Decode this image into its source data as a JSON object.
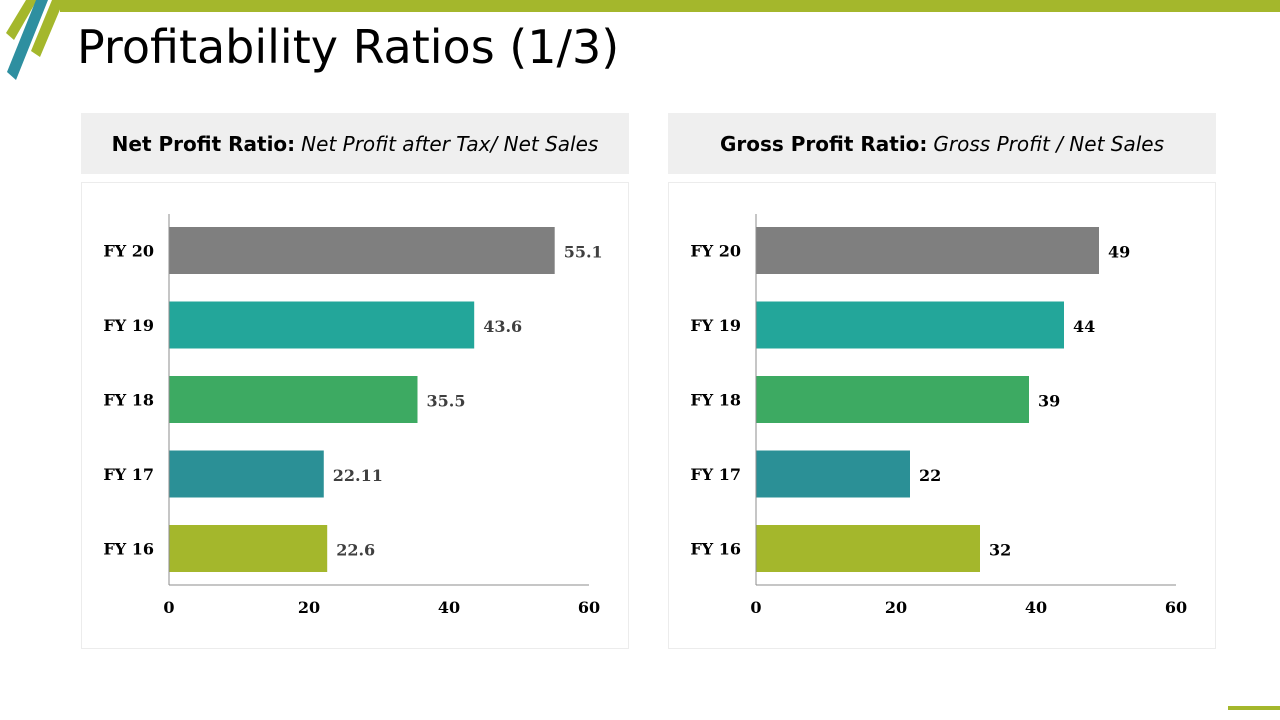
{
  "slide": {
    "title": "Profitability Ratios (1/3)"
  },
  "theme": {
    "accent": "#a4b72c",
    "teal": "#2e8fa0"
  },
  "panels": [
    {
      "label": "Net Profit Ratio:",
      "expression": "Net Profit after Tax/ Net Sales"
    },
    {
      "label": "Gross Profit Ratio:",
      "expression": "Gross Profit / Net Sales"
    }
  ],
  "chart_data": [
    {
      "type": "bar",
      "orientation": "horizontal",
      "title": "Net Profit Ratio: Net Profit after Tax/ Net Sales",
      "categories": [
        "FY 20",
        "FY 19",
        "FY 18",
        "FY 17",
        "FY 16"
      ],
      "values": [
        55.1,
        43.6,
        35.5,
        22.11,
        22.6
      ],
      "data_labels": [
        "55.1",
        "43.6",
        "35.5",
        "22.11",
        "22.6"
      ],
      "colors": [
        "#7f7f7f",
        "#23a69a",
        "#3daa62",
        "#2b9096",
        "#a4b72c"
      ],
      "label_color": "#3f3f3f",
      "xlim": [
        0,
        60
      ],
      "xticks": [
        0,
        20,
        40,
        60
      ],
      "grid": false,
      "xlabel": "",
      "ylabel": ""
    },
    {
      "type": "bar",
      "orientation": "horizontal",
      "title": "Gross Profit Ratio: Gross Profit / Net Sales",
      "categories": [
        "FY 20",
        "FY 19",
        "FY 18",
        "FY 17",
        "FY 16"
      ],
      "values": [
        49,
        44,
        39,
        22,
        32
      ],
      "data_labels": [
        "49",
        "44",
        "39",
        "22",
        "32"
      ],
      "colors": [
        "#7f7f7f",
        "#23a69a",
        "#3daa62",
        "#2b9096",
        "#a4b72c"
      ],
      "label_color": "#000000",
      "xlim": [
        0,
        60
      ],
      "xticks": [
        0,
        20,
        40,
        60
      ],
      "grid": false,
      "xlabel": "",
      "ylabel": ""
    }
  ]
}
